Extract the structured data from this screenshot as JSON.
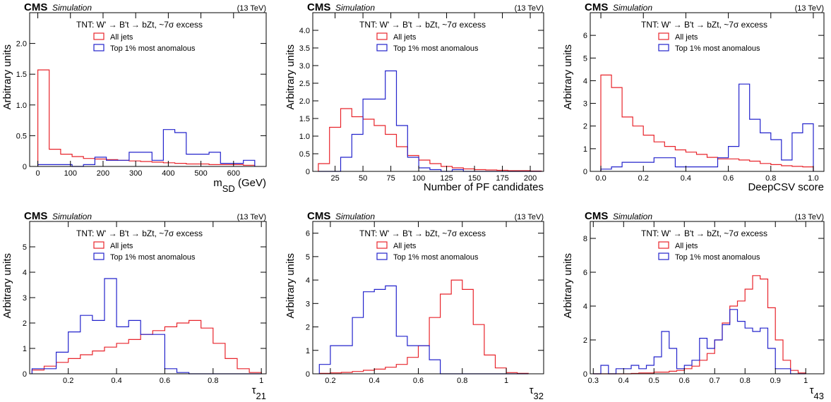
{
  "header": {
    "cms_label": "CMS",
    "simulation_label": "Simulation",
    "energy_label": "(13 TeV)"
  },
  "legend": {
    "title": "TNT: W' → B't → bZt, ~7σ excess",
    "entries": [
      {
        "name": "All jets",
        "color": "#e8242b"
      },
      {
        "name": "Top 1% most anomalous",
        "color": "#2323cc"
      }
    ]
  },
  "chart_data": [
    {
      "type": "histogram",
      "ylabel": "Arbitrary units",
      "xlabel": "m",
      "xlabel_sub": "SD",
      "xlabel_suffix": " (GeV)",
      "xlim": [
        -25,
        700
      ],
      "ylim": [
        0,
        2.5
      ],
      "xticks": [
        0,
        100,
        200,
        300,
        400,
        500,
        600
      ],
      "yticks": [
        0,
        0.5,
        1.0,
        1.5,
        2.0
      ],
      "ytick_labels": [
        "0",
        "0.5",
        "1.0",
        "1.5",
        "2.0"
      ],
      "bin_edges": [
        0,
        35,
        70,
        105,
        140,
        175,
        210,
        245,
        280,
        315,
        350,
        385,
        420,
        455,
        490,
        525,
        560,
        595,
        630,
        665
      ],
      "series": [
        {
          "name": "All jets",
          "values": [
            1.57,
            0.28,
            0.2,
            0.16,
            0.13,
            0.12,
            0.11,
            0.1,
            0.09,
            0.08,
            0.07,
            0.06,
            0.05,
            0.04,
            0.04,
            0.03,
            0.03,
            0.03,
            0.02
          ]
        },
        {
          "name": "Top 1% most anomalous",
          "values": [
            0.03,
            0.03,
            0.03,
            0.0,
            0.03,
            0.15,
            0.1,
            0.1,
            0.23,
            0.23,
            0.1,
            0.6,
            0.55,
            0.2,
            0.2,
            0.23,
            0.05,
            0.05,
            0.1
          ]
        }
      ]
    },
    {
      "type": "histogram",
      "ylabel": "Arbitrary units",
      "xlabel": "Number of PF candidates",
      "xlim": [
        5,
        212
      ],
      "ylim": [
        0,
        4.5
      ],
      "xticks": [
        25,
        50,
        75,
        100,
        125,
        150,
        175,
        200
      ],
      "yticks": [
        0,
        0.5,
        1.0,
        1.5,
        2.0,
        2.5,
        3.0,
        3.5,
        4.0
      ],
      "ytick_labels": [
        "0",
        "0.5",
        "1.0",
        "1.5",
        "2.0",
        "2.5",
        "3.0",
        "3.5",
        "4.0"
      ],
      "bin_edges": [
        10,
        20,
        30,
        40,
        50,
        60,
        70,
        80,
        90,
        100,
        110,
        120,
        130,
        140,
        150,
        160,
        170,
        180,
        190,
        200,
        210
      ],
      "series": [
        {
          "name": "All jets",
          "values": [
            0.22,
            1.25,
            1.78,
            1.55,
            1.48,
            1.3,
            1.05,
            0.7,
            0.45,
            0.32,
            0.22,
            0.14,
            0.1,
            0.07,
            0.05,
            0.04,
            0.03,
            0.02,
            0.02,
            0.01
          ]
        },
        {
          "name": "Top 1% most anomalous",
          "values": [
            0.0,
            0.0,
            0.4,
            1.05,
            2.05,
            2.05,
            2.85,
            1.3,
            0.4,
            0.1,
            0.05,
            0.0,
            0.05,
            0.0,
            0.0,
            0.0,
            0.0,
            0.0,
            0.0,
            0.0
          ]
        }
      ]
    },
    {
      "type": "histogram",
      "ylabel": "Arbitrary units",
      "xlabel": "DeepCSV score",
      "xlim": [
        -0.05,
        1.05
      ],
      "ylim": [
        0,
        7
      ],
      "xticks": [
        0,
        0.2,
        0.4,
        0.6,
        0.8,
        1.0
      ],
      "xtick_labels": [
        "0.0",
        "0.2",
        "0.4",
        "0.6",
        "0.8",
        "1.0"
      ],
      "yticks": [
        0,
        1,
        2,
        3,
        4,
        5,
        6
      ],
      "bin_edges": [
        0,
        0.05,
        0.1,
        0.15,
        0.2,
        0.25,
        0.3,
        0.35,
        0.4,
        0.45,
        0.5,
        0.55,
        0.6,
        0.65,
        0.7,
        0.75,
        0.8,
        0.85,
        0.9,
        0.95,
        1.0
      ],
      "series": [
        {
          "name": "All jets",
          "values": [
            4.25,
            3.7,
            2.4,
            2.0,
            1.6,
            1.3,
            1.1,
            0.95,
            0.85,
            0.75,
            0.62,
            0.55,
            0.55,
            0.5,
            0.45,
            0.35,
            0.3,
            0.25,
            0.22,
            0.2
          ]
        },
        {
          "name": "Top 1% most anomalous",
          "values": [
            0.1,
            0.2,
            0.4,
            0.4,
            0.4,
            0.6,
            0.6,
            0.2,
            0.2,
            0.2,
            0.2,
            0.6,
            1.1,
            3.85,
            2.3,
            1.7,
            1.4,
            0.5,
            1.7,
            2.1
          ]
        }
      ]
    },
    {
      "type": "histogram",
      "ylabel": "Arbitrary units",
      "xlabel": "τ",
      "xlabel_sub": "21",
      "xlim": [
        0.04,
        1.02
      ],
      "ylim": [
        0,
        6
      ],
      "xticks": [
        0.2,
        0.4,
        0.6,
        0.8,
        1.0
      ],
      "yticks": [
        0,
        1,
        2,
        3,
        4,
        5
      ],
      "bin_edges": [
        0.05,
        0.1,
        0.15,
        0.2,
        0.25,
        0.3,
        0.35,
        0.4,
        0.45,
        0.5,
        0.55,
        0.6,
        0.65,
        0.7,
        0.75,
        0.8,
        0.85,
        0.9,
        0.95,
        1.0
      ],
      "series": [
        {
          "name": "All jets",
          "values": [
            0.15,
            0.3,
            0.45,
            0.6,
            0.75,
            0.9,
            1.05,
            1.2,
            1.35,
            1.55,
            1.7,
            1.85,
            2.0,
            2.1,
            1.8,
            1.2,
            0.6,
            0.2,
            0.05
          ]
        },
        {
          "name": "Top 1% most anomalous",
          "values": [
            0.2,
            0.2,
            0.85,
            1.65,
            2.3,
            2.1,
            3.75,
            1.85,
            2.1,
            1.55,
            1.55,
            0.2,
            0.05,
            0.0,
            0.0,
            0.0,
            0.0,
            0.0,
            0.0
          ]
        }
      ]
    },
    {
      "type": "histogram",
      "ylabel": "Arbitrary units",
      "xlabel": "τ",
      "xlabel_sub": "32",
      "xlim": [
        0.12,
        1.17
      ],
      "ylim": [
        0,
        6.5
      ],
      "xticks": [
        0.2,
        0.4,
        0.6,
        0.8,
        1.0
      ],
      "yticks": [
        0,
        1,
        2,
        3,
        4,
        5,
        6
      ],
      "bin_edges": [
        0.15,
        0.2,
        0.25,
        0.3,
        0.35,
        0.4,
        0.45,
        0.5,
        0.55,
        0.6,
        0.65,
        0.7,
        0.75,
        0.8,
        0.85,
        0.9,
        0.95,
        1.0,
        1.05,
        1.1
      ],
      "series": [
        {
          "name": "All jets",
          "values": [
            0.02,
            0.04,
            0.06,
            0.1,
            0.15,
            0.2,
            0.28,
            0.4,
            0.7,
            1.2,
            2.4,
            3.4,
            4.0,
            3.6,
            2.1,
            0.8,
            0.25,
            0.05,
            0.02
          ]
        },
        {
          "name": "Top 1% most anomalous",
          "values": [
            0.4,
            1.2,
            1.2,
            2.4,
            3.5,
            3.6,
            3.75,
            1.6,
            1.2,
            1.2,
            0.6,
            0.0,
            0.0,
            0.0,
            0.0,
            0.0,
            0.0,
            0.0,
            0.0
          ]
        }
      ]
    },
    {
      "type": "histogram",
      "ylabel": "Arbitrary units",
      "xlabel": "τ",
      "xlabel_sub": "43",
      "xlim": [
        0.29,
        1.06
      ],
      "ylim": [
        0,
        9
      ],
      "xticks": [
        0.3,
        0.4,
        0.5,
        0.6,
        0.7,
        0.8,
        0.9,
        1.0
      ],
      "yticks": [
        0,
        2,
        4,
        6,
        8
      ],
      "bin_edges": [
        0.3,
        0.325,
        0.35,
        0.375,
        0.4,
        0.425,
        0.45,
        0.475,
        0.5,
        0.525,
        0.55,
        0.575,
        0.6,
        0.625,
        0.65,
        0.675,
        0.7,
        0.725,
        0.75,
        0.775,
        0.8,
        0.825,
        0.85,
        0.875,
        0.9,
        0.925,
        0.95,
        0.975,
        1.0
      ],
      "series": [
        {
          "name": "All jets",
          "values": [
            0.0,
            0.0,
            0.0,
            0.0,
            0.0,
            0.02,
            0.05,
            0.05,
            0.1,
            0.1,
            0.15,
            0.2,
            0.3,
            0.45,
            0.8,
            1.2,
            2.0,
            3.0,
            4.0,
            4.3,
            5.0,
            5.8,
            5.6,
            3.9,
            2.0,
            0.8,
            0.2,
            0.05
          ]
        },
        {
          "name": "Top 1% most anomalous",
          "values": [
            0.0,
            0.5,
            0.0,
            0.3,
            0.3,
            0.5,
            0.3,
            0.5,
            1.0,
            2.5,
            1.5,
            0.3,
            0.5,
            0.8,
            2.1,
            1.5,
            2.0,
            2.9,
            3.8,
            3.1,
            2.7,
            2.5,
            2.7,
            1.5,
            0.3,
            0.3,
            0.0,
            0.0
          ]
        }
      ]
    }
  ]
}
